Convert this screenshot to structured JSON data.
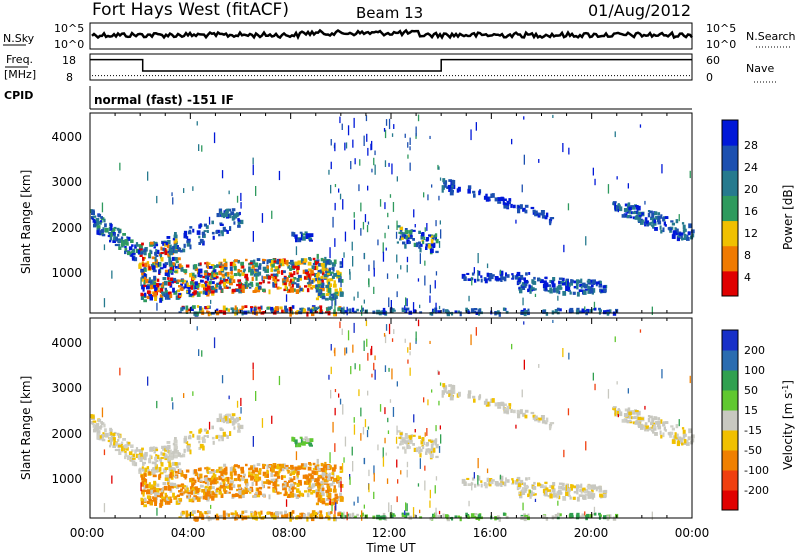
{
  "header": {
    "station": "Fort Hays West (fitACF)",
    "beam": "Beam 13",
    "date": "01/Aug/2012"
  },
  "noise_panel": {
    "left_label": "N.Sky",
    "right_label": "N.Search",
    "left_ticks": [
      "10^5",
      "10^0"
    ],
    "right_ticks": [
      "10^5",
      "10^0"
    ]
  },
  "freq_panel": {
    "left_label_top": "Freq.",
    "left_label_bottom": "[MHz]",
    "right_label": "Nave",
    "left_ticks": [
      "18",
      "8"
    ],
    "right_ticks": [
      "60",
      "0"
    ],
    "freq_series": {
      "time_h": [
        0,
        2.1,
        2.1,
        14.0,
        14.0,
        24
      ],
      "freq_mhz": [
        16.2,
        16.2,
        10.5,
        10.5,
        16.2,
        16.2
      ]
    },
    "nave_level": 10
  },
  "cpid": {
    "label": "CPID",
    "text": "normal (fast) -151 IF"
  },
  "chart_data": [
    {
      "type": "heatmap",
      "name": "power",
      "ylabel": "Slant Range [km]",
      "xlabel": "",
      "y_ticks": [
        "4000",
        "3000",
        "2000",
        "1000"
      ],
      "ylim": [
        180,
        4500
      ],
      "xlim_hours": [
        0,
        24
      ],
      "colorbar": {
        "label": "Power [dB]",
        "ticks": [
          "28",
          "24",
          "20",
          "16",
          "12",
          "8",
          "4"
        ],
        "range": [
          0,
          30
        ],
        "colors": [
          "#0018d8",
          "#1c50b0",
          "#267a8e",
          "#2f9a5e",
          "#f0c000",
          "#f07a00",
          "#e00000"
        ]
      }
    },
    {
      "type": "heatmap",
      "name": "velocity",
      "ylabel": "Slant Range [km]",
      "xlabel": "Time UT",
      "x_ticks": [
        "00:00",
        "04:00",
        "08:00",
        "12:00",
        "16:00",
        "20:00",
        "00:00"
      ],
      "y_ticks": [
        "4000",
        "3000",
        "2000",
        "1000"
      ],
      "ylim": [
        180,
        4500
      ],
      "xlim_hours": [
        0,
        24
      ],
      "colorbar": {
        "label_main": "Velocity [m s",
        "label_sup": "-1",
        "label_end": "]",
        "ticks": [
          "200",
          "100",
          "50",
          "15",
          "-15",
          "-50",
          "-100",
          "-200"
        ],
        "colors": [
          "#1830c8",
          "#2a6cb0",
          "#30a050",
          "#60c830",
          "#c8c8c0",
          "#f0c000",
          "#f08000",
          "#f04010",
          "#e00000"
        ]
      }
    }
  ]
}
